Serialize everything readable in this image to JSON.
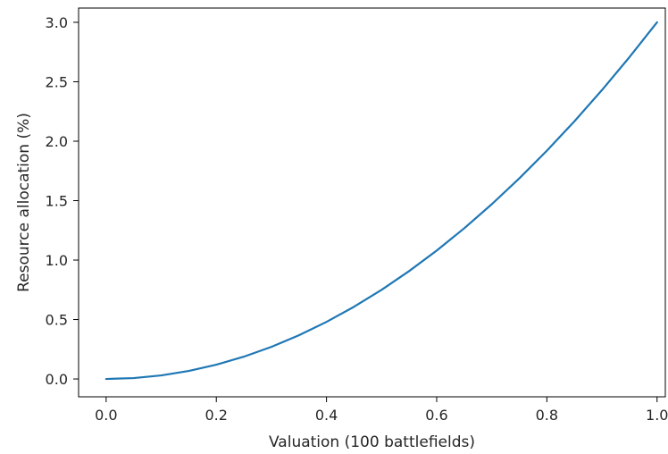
{
  "chart_data": {
    "type": "line",
    "title": "",
    "xlabel": "Valuation (100 battlefields)",
    "ylabel": "Resource allocation (%)",
    "xlim": [
      -0.05,
      1.015
    ],
    "ylim": [
      -0.15,
      3.12
    ],
    "grid": false,
    "legend": "none",
    "x_ticks": [
      "0.0",
      "0.2",
      "0.4",
      "0.6",
      "0.8",
      "1.0"
    ],
    "y_ticks": [
      "0.0",
      "0.5",
      "1.0",
      "1.5",
      "2.0",
      "2.5",
      "3.0"
    ],
    "series": [
      {
        "color": "#1f77b4",
        "x": [
          0.0,
          0.05,
          0.1,
          0.15,
          0.2,
          0.25,
          0.3,
          0.35,
          0.4,
          0.45,
          0.5,
          0.55,
          0.6,
          0.65,
          0.7,
          0.75,
          0.8,
          0.85,
          0.9,
          0.95,
          1.0
        ],
        "y": [
          0.0,
          0.0075,
          0.03,
          0.0675,
          0.12,
          0.1875,
          0.27,
          0.3675,
          0.48,
          0.6075,
          0.75,
          0.9075,
          1.08,
          1.2675,
          1.47,
          1.6875,
          1.92,
          2.1675,
          2.43,
          2.7075,
          3.0
        ]
      }
    ]
  }
}
